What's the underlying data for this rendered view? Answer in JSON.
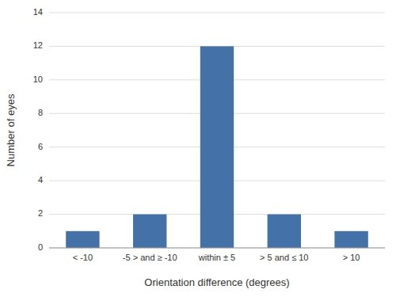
{
  "chart_data": {
    "type": "bar",
    "categories": [
      "< -10",
      "-5 > and ≥ -10",
      "within ± 5",
      "> 5 and ≤ 10",
      "> 10"
    ],
    "values": [
      1,
      2,
      12,
      2,
      1
    ],
    "color": "#4472a8",
    "xlabel": "Orientation difference (degrees)",
    "ylabel": "Number of eyes",
    "ylim": [
      0,
      14
    ],
    "yticks": [
      0,
      2,
      4,
      6,
      8,
      10,
      12,
      14
    ],
    "grid": true
  }
}
